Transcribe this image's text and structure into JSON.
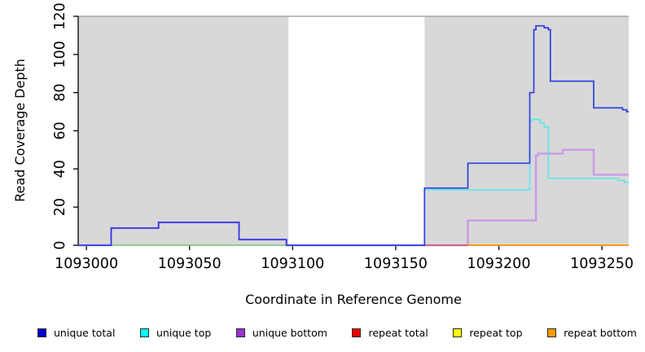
{
  "chart_data": {
    "type": "line",
    "subtype": "step",
    "title": "",
    "xlabel": "Coordinate in Reference Genome",
    "ylabel": "Read Coverage Depth",
    "xlim": [
      1092996,
      1093263
    ],
    "ylim": [
      0,
      120
    ],
    "x_ticks": [
      1093000,
      1093050,
      1093100,
      1093150,
      1093200,
      1093250
    ],
    "y_ticks": [
      0,
      20,
      40,
      60,
      80,
      100,
      120
    ],
    "grid": false,
    "legend_position": "bottom",
    "plot_bg": "#ffffff",
    "shaded_region_color": "#d8d8d8",
    "shaded_regions": [
      {
        "x0": 1092996,
        "x1": 1093098
      },
      {
        "x0": 1093164,
        "x1": 1093263
      }
    ],
    "series": [
      {
        "name": "unique bottom",
        "color": "#c89ae6",
        "width": 2.4,
        "extend": true,
        "points": [
          [
            1092996,
            0
          ],
          [
            1093012,
            9
          ],
          [
            1093035,
            12
          ],
          [
            1093074,
            3
          ],
          [
            1093097,
            0
          ],
          [
            1093185,
            13
          ],
          [
            1093218,
            47
          ],
          [
            1093219,
            48
          ],
          [
            1093231,
            50
          ],
          [
            1093246,
            37
          ]
        ]
      },
      {
        "name": "repeat top",
        "color": "#8ed28e",
        "width": 1.5,
        "extend": false,
        "points": [
          [
            1092996,
            0
          ],
          [
            1093098,
            0
          ]
        ]
      },
      {
        "name": "repeat total",
        "color": "#cf5566",
        "width": 1.5,
        "extend": false,
        "points": [
          [
            1093164,
            0
          ],
          [
            1093185,
            0
          ]
        ]
      },
      {
        "name": "repeat bottom",
        "color": "#ff9b0e",
        "width": 1.8,
        "extend": false,
        "points": [
          [
            1093185,
            0
          ],
          [
            1093263,
            0
          ]
        ]
      },
      {
        "name": "unique top",
        "color": "#5ce6ea",
        "width": 1.6,
        "extend": true,
        "points": [
          [
            1093164,
            0
          ],
          [
            1093164,
            29
          ],
          [
            1093215,
            65
          ],
          [
            1093216,
            66
          ],
          [
            1093220,
            64
          ],
          [
            1093222,
            62
          ],
          [
            1093224,
            35
          ],
          [
            1093258,
            34
          ],
          [
            1093261,
            33
          ]
        ]
      },
      {
        "name": "unique total",
        "color": "#2f3fdf",
        "width": 1.7,
        "extend": true,
        "points": [
          [
            1092996,
            0
          ],
          [
            1093012,
            9
          ],
          [
            1093035,
            12
          ],
          [
            1093074,
            3
          ],
          [
            1093097,
            0
          ],
          [
            1093164,
            30
          ],
          [
            1093185,
            43
          ],
          [
            1093215,
            80
          ],
          [
            1093217,
            113
          ],
          [
            1093218,
            115
          ],
          [
            1093222,
            114
          ],
          [
            1093224,
            113
          ],
          [
            1093225,
            86
          ],
          [
            1093246,
            72
          ],
          [
            1093260,
            71
          ],
          [
            1093262,
            70
          ]
        ]
      }
    ],
    "legend": [
      {
        "label": "unique total",
        "color": "#0000cd"
      },
      {
        "label": "unique top",
        "color": "#00ffff"
      },
      {
        "label": "unique bottom",
        "color": "#9932cc"
      },
      {
        "label": "repeat total",
        "color": "#ee0000"
      },
      {
        "label": "repeat top",
        "color": "#ffff00"
      },
      {
        "label": "repeat bottom",
        "color": "#ff9900"
      }
    ]
  }
}
